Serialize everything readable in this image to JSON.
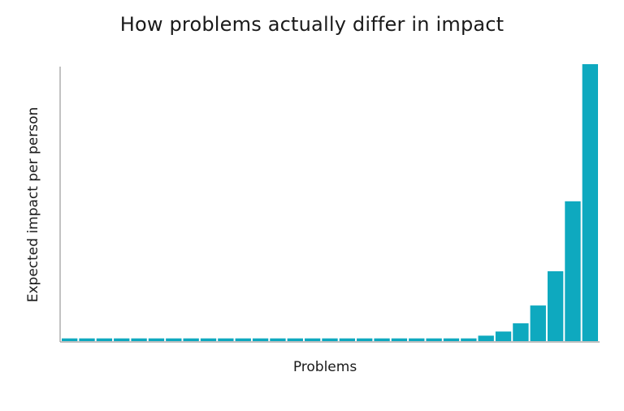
{
  "chart_data": {
    "type": "bar",
    "title": "How problems actually differ in impact",
    "xlabel": "Problems",
    "ylabel": "Expected impact per person",
    "values": [
      1,
      1,
      1,
      1,
      1,
      1,
      1,
      1,
      1,
      1,
      1,
      1,
      1,
      1,
      1,
      1,
      1,
      1,
      1,
      1,
      1,
      1,
      1,
      1,
      2,
      3.5,
      6.5,
      13,
      25.5,
      51,
      101
    ],
    "ylim": [
      0,
      101
    ],
    "y_ticks_shown": false,
    "x_ticks_shown": false,
    "grid": false,
    "legend": "none",
    "colors": {
      "bar": "#0ea9bf",
      "axis": "#9a9a9a",
      "text": "#1a1a1a"
    }
  }
}
